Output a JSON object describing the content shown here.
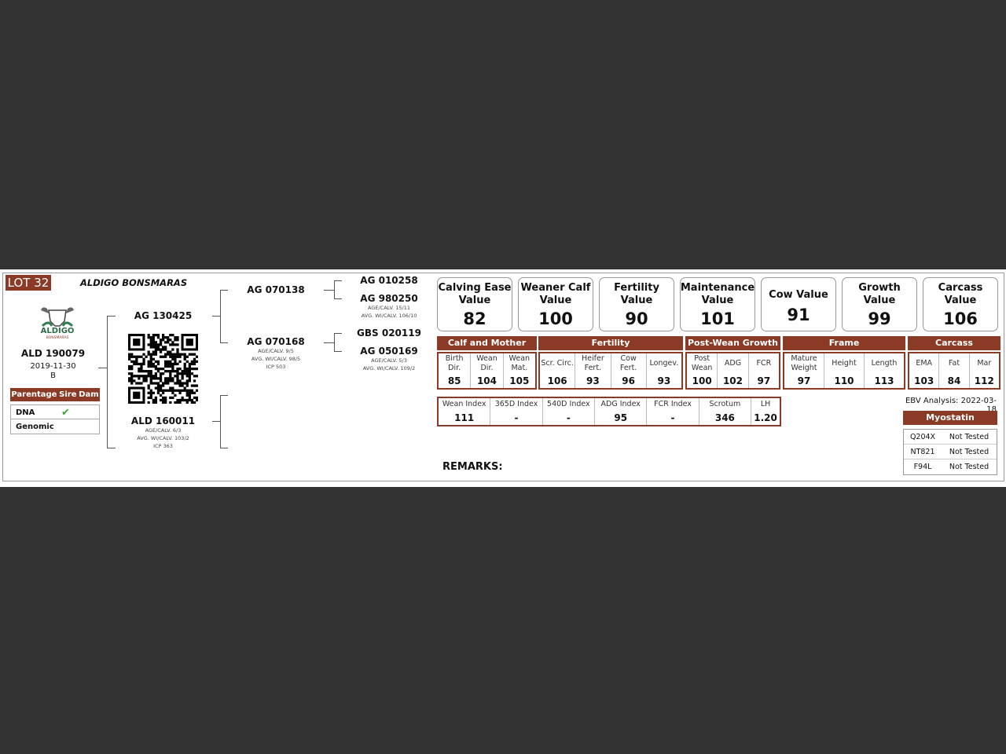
{
  "header": {
    "lot": "LOT 32",
    "farm": "ALDIGO BONSMARAS"
  },
  "logo": {
    "text": "ALDIGO",
    "sub": "BONSMARAS"
  },
  "animal": {
    "id": "ALD 190079",
    "dob": "2019-11-30",
    "type": "B"
  },
  "parentage": {
    "headers": [
      "Parentage",
      "Sire",
      "Dam"
    ],
    "rows": [
      {
        "label": "DNA",
        "sire": "✔",
        "dam": ""
      },
      {
        "label": "Genomic",
        "sire": "",
        "dam": ""
      }
    ]
  },
  "pedigree": {
    "sire": {
      "id": "AG 130425"
    },
    "dam": {
      "id": "ALD 160011",
      "l1": "AGE/CALV. 6/3",
      "l2": "AVG. WI/CALV. 103/2",
      "l3": "ICP 363"
    },
    "ss": {
      "id": "AG 070138"
    },
    "sd": {
      "id": "AG 070168",
      "l1": "AGE/CALV. 9/5",
      "l2": "AVG. WI/CALV. 98/5",
      "l3": "ICP 503"
    },
    "sss": {
      "id": "AG 010258"
    },
    "ssd": {
      "id": "AG 980250",
      "l1": "AGE/CALV. 15/11",
      "l2": "AVG. WI/CALV. 106/10"
    },
    "sds": {
      "id": "GBS 020119"
    },
    "sdd": {
      "id": "AG 050169",
      "l1": "AGE/CALV. 5/3",
      "l2": "AVG. WI/CALV. 109/2"
    }
  },
  "values": [
    {
      "title": "Calving Ease Value",
      "value": "82"
    },
    {
      "title": "Weaner Calf Value",
      "value": "100"
    },
    {
      "title": "Fertility Value",
      "value": "90"
    },
    {
      "title": "Maintenance Value",
      "value": "101"
    },
    {
      "title": "Cow Value",
      "value": "91"
    },
    {
      "title": "Growth Value",
      "value": "99"
    },
    {
      "title": "Carcass Value",
      "value": "106"
    }
  ],
  "sections": [
    {
      "title": "Calf and Mother",
      "cells": [
        {
          "h": "Birth Dir.",
          "v": "85"
        },
        {
          "h": "Wean Dir.",
          "v": "104"
        },
        {
          "h": "Wean Mat.",
          "v": "105"
        }
      ]
    },
    {
      "title": "Fertility",
      "cells": [
        {
          "h": "Scr. Circ.",
          "v": "106"
        },
        {
          "h": "Heifer Fert.",
          "v": "93"
        },
        {
          "h": "Cow Fert.",
          "v": "96"
        },
        {
          "h": "Longev.",
          "v": "93"
        }
      ]
    },
    {
      "title": "Post-Wean Growth",
      "cells": [
        {
          "h": "Post Wean",
          "v": "100"
        },
        {
          "h": "ADG",
          "v": "102"
        },
        {
          "h": "FCR",
          "v": "97"
        }
      ]
    },
    {
      "title": "Frame",
      "cells": [
        {
          "h": "Mature Weight",
          "v": "97"
        },
        {
          "h": "Height",
          "v": "110"
        },
        {
          "h": "Length",
          "v": "113"
        }
      ]
    },
    {
      "title": "Carcass",
      "cells": [
        {
          "h": "EMA",
          "v": "103"
        },
        {
          "h": "Fat",
          "v": "84"
        },
        {
          "h": "Mar",
          "v": "112"
        }
      ]
    }
  ],
  "indexes": [
    {
      "h": "Wean Index",
      "v": "111"
    },
    {
      "h": "365D Index",
      "v": "-"
    },
    {
      "h": "540D Index",
      "v": "-"
    },
    {
      "h": "ADG Index",
      "v": "95"
    },
    {
      "h": "FCR Index",
      "v": "-"
    },
    {
      "h": "Scrotum",
      "v": "346"
    },
    {
      "h": "LH",
      "v": "1.20"
    }
  ],
  "ebv": "EBV Analysis: 2022-03-18",
  "myostatin": {
    "title": "Myostatin",
    "rows": [
      {
        "k": "Q204X",
        "v": "Not Tested"
      },
      {
        "k": "NT821",
        "v": "Not Tested"
      },
      {
        "k": "F94L",
        "v": "Not Tested"
      }
    ]
  },
  "remarks": "REMARKS:",
  "colors": {
    "brand": "#8b3a26",
    "check": "#3aa63a"
  }
}
